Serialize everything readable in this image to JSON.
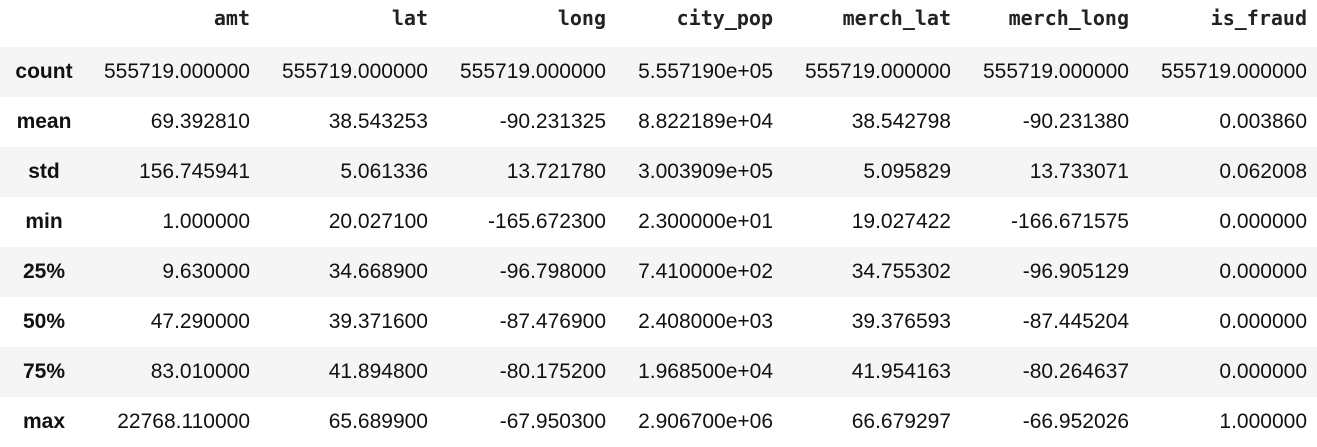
{
  "table": {
    "index_header": "",
    "columns": [
      "amt",
      "lat",
      "long",
      "city_pop",
      "merch_lat",
      "merch_long",
      "is_fraud"
    ],
    "rows": [
      {
        "label": "count",
        "cells": [
          "555719.000000",
          "555719.000000",
          "555719.000000",
          "5.557190e+05",
          "555719.000000",
          "555719.000000",
          "555719.000000"
        ]
      },
      {
        "label": "mean",
        "cells": [
          "69.392810",
          "38.543253",
          "-90.231325",
          "8.822189e+04",
          "38.542798",
          "-90.231380",
          "0.003860"
        ]
      },
      {
        "label": "std",
        "cells": [
          "156.745941",
          "5.061336",
          "13.721780",
          "3.003909e+05",
          "5.095829",
          "13.733071",
          "0.062008"
        ]
      },
      {
        "label": "min",
        "cells": [
          "1.000000",
          "20.027100",
          "-165.672300",
          "2.300000e+01",
          "19.027422",
          "-166.671575",
          "0.000000"
        ]
      },
      {
        "label": "25%",
        "cells": [
          "9.630000",
          "34.668900",
          "-96.798000",
          "7.410000e+02",
          "34.755302",
          "-96.905129",
          "0.000000"
        ]
      },
      {
        "label": "50%",
        "cells": [
          "47.290000",
          "39.371600",
          "-87.476900",
          "2.408000e+03",
          "39.376593",
          "-87.445204",
          "0.000000"
        ]
      },
      {
        "label": "75%",
        "cells": [
          "83.010000",
          "41.894800",
          "-80.175200",
          "1.968500e+04",
          "41.954163",
          "-80.264637",
          "0.000000"
        ]
      },
      {
        "label": "max",
        "cells": [
          "22768.110000",
          "65.689900",
          "-67.950300",
          "2.906700e+06",
          "66.679297",
          "-66.952026",
          "1.000000"
        ]
      }
    ]
  }
}
